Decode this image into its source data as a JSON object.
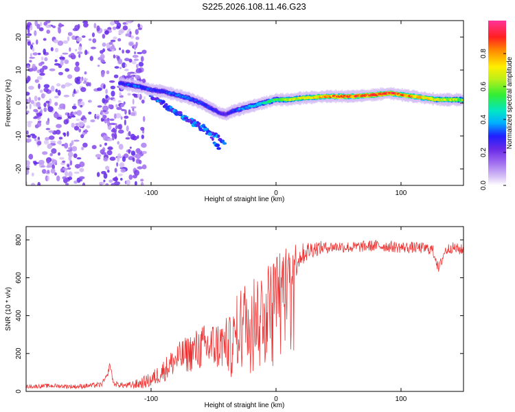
{
  "title": "S225.2026.108.11.46.G23",
  "chart_data": [
    {
      "type": "heatmap",
      "name": "spectrogram",
      "xlabel": "Height of straight line (km)",
      "ylabel": "Frequency (Hz)",
      "xlim": [
        -200,
        150
      ],
      "ylim": [
        -25,
        25
      ],
      "xticks": [
        -100,
        0,
        100
      ],
      "yticks": [
        -20,
        -10,
        0,
        10,
        20
      ],
      "colorbar": {
        "label": "Normalized spectral amplitude",
        "range": [
          0.0,
          1.0
        ],
        "ticks": [
          "0.0",
          "0.2",
          "0.4",
          "0.6",
          "0.8"
        ]
      },
      "ridge": {
        "description": "main spectral line frequency vs height",
        "x": [
          -125,
          -110,
          -100,
          -90,
          -80,
          -70,
          -60,
          -50,
          -45,
          -40,
          -35,
          -30,
          -20,
          -10,
          0,
          10,
          20,
          40,
          60,
          80,
          90,
          100,
          110,
          120,
          130,
          140,
          150
        ],
        "y": [
          6,
          5,
          4,
          3.5,
          2.5,
          1.5,
          0,
          -2,
          -3,
          -3.5,
          -2.5,
          -2,
          -1,
          0,
          1,
          1,
          1.5,
          2,
          2,
          2.5,
          3,
          2.5,
          2,
          1.5,
          1,
          1,
          1
        ],
        "peak_amplitude": [
          0.3,
          0.35,
          0.3,
          0.3,
          0.35,
          0.35,
          0.3,
          0.3,
          0.25,
          0.25,
          0.3,
          0.35,
          0.4,
          0.45,
          0.55,
          0.65,
          0.7,
          0.8,
          0.85,
          0.9,
          0.9,
          0.85,
          0.8,
          0.75,
          0.7,
          0.65,
          0.6
        ]
      },
      "secondary_lines": [
        {
          "x": [
            -100,
            -80,
            -60,
            -40
          ],
          "y": [
            2,
            -3,
            -7,
            -12
          ]
        },
        {
          "x": [
            -95,
            -75,
            -55,
            -45
          ],
          "y": [
            1,
            -4,
            -9,
            -14
          ]
        }
      ]
    },
    {
      "type": "line",
      "name": "snr",
      "xlabel": "Height of straight line (km)",
      "ylabel": "SNR (10 * v/v)",
      "xlim": [
        -200,
        150
      ],
      "ylim": [
        0,
        870
      ],
      "xticks": [
        -100,
        0,
        100
      ],
      "yticks": [
        0,
        200,
        400,
        600,
        800
      ],
      "color": "#ee3333",
      "series": [
        {
          "name": "SNR",
          "x": [
            -200,
            -180,
            -160,
            -140,
            -135,
            -133,
            -130,
            -120,
            -110,
            -100,
            -90,
            -80,
            -70,
            -60,
            -50,
            -40,
            -35,
            -30,
            -25,
            -20,
            -15,
            -10,
            -5,
            0,
            5,
            10,
            15,
            20,
            25,
            30,
            40,
            50,
            60,
            70,
            80,
            90,
            100,
            110,
            120,
            125,
            128,
            130,
            135,
            140,
            150
          ],
          "y": [
            25,
            30,
            25,
            35,
            80,
            145,
            40,
            30,
            40,
            60,
            110,
            170,
            200,
            230,
            240,
            250,
            230,
            350,
            380,
            410,
            420,
            440,
            480,
            530,
            580,
            640,
            690,
            720,
            740,
            755,
            760,
            765,
            760,
            765,
            770,
            765,
            760,
            760,
            755,
            750,
            700,
            640,
            740,
            760,
            745
          ]
        }
      ],
      "noise_amplitude": {
        "x": [
          -200,
          -120,
          -100,
          -80,
          -60,
          -40,
          -30,
          -20,
          -10,
          0,
          10,
          20,
          40,
          100,
          150
        ],
        "y": [
          10,
          15,
          40,
          80,
          120,
          140,
          200,
          220,
          230,
          200,
          150,
          60,
          30,
          30,
          30
        ]
      }
    }
  ]
}
